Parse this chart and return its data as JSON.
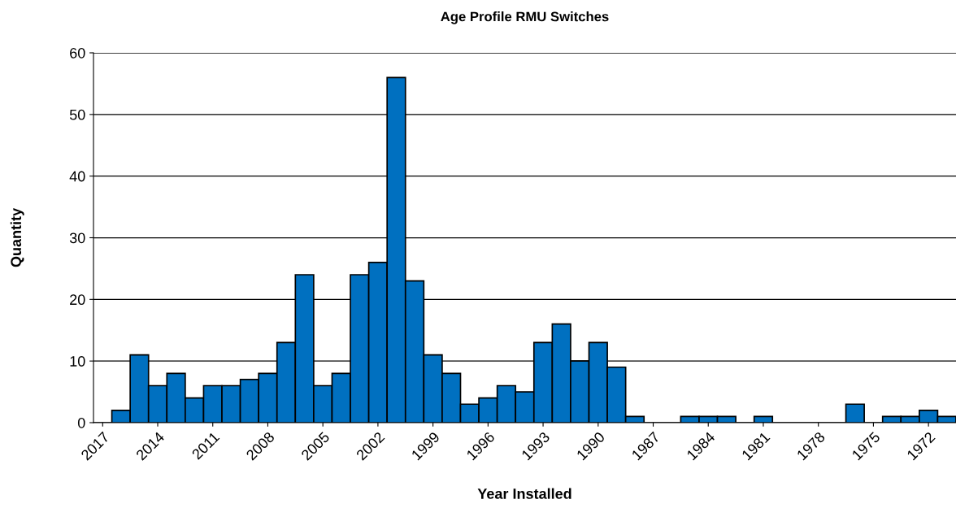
{
  "chart_data": {
    "type": "bar",
    "title": "Age Profile RMU Switches",
    "xlabel": "Year Installed",
    "ylabel": "Quantity",
    "categories": [
      "2017",
      null,
      null,
      "2014",
      null,
      null,
      "2011",
      null,
      null,
      "2008",
      null,
      null,
      "2005",
      null,
      null,
      "2002",
      null,
      null,
      "1999",
      null,
      null,
      "1996",
      null,
      null,
      "1993",
      null,
      null,
      "1990",
      null,
      null,
      "1987",
      null,
      null,
      "1984",
      null,
      null,
      "1981",
      null,
      null,
      "1978",
      null,
      null,
      "1975",
      null,
      null,
      "1972",
      null
    ],
    "values": [
      0,
      2,
      11,
      6,
      8,
      4,
      6,
      6,
      7,
      8,
      13,
      24,
      6,
      8,
      24,
      26,
      56,
      23,
      11,
      8,
      3,
      4,
      6,
      5,
      13,
      16,
      10,
      13,
      9,
      1,
      0,
      0,
      1,
      1,
      1,
      0,
      1,
      0,
      0,
      0,
      0,
      3,
      0,
      1,
      1,
      2,
      1
    ],
    "color": "#0070c0",
    "ylim": [
      0,
      60
    ],
    "yticks": [
      0,
      10,
      20,
      30,
      40,
      50,
      60
    ],
    "grid": "y",
    "legend": false
  }
}
